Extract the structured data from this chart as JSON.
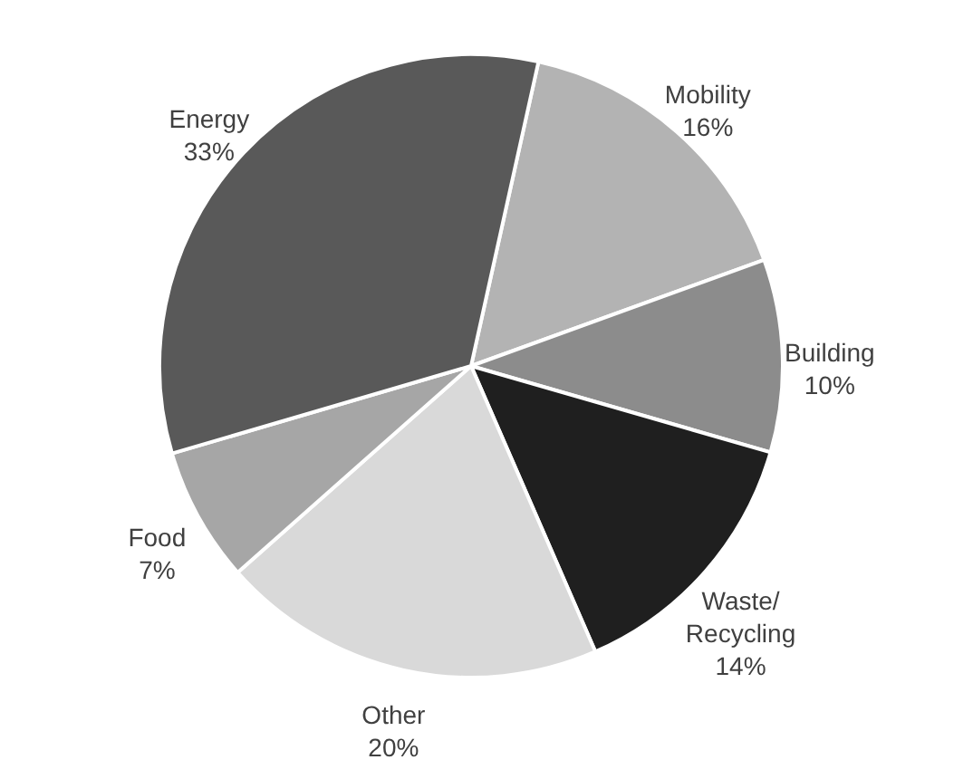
{
  "chart_data": {
    "type": "pie",
    "categories": [
      "Mobility",
      "Building",
      "Waste/Recycling",
      "Other",
      "Food",
      "Energy"
    ],
    "values": [
      16,
      10,
      14,
      20,
      7,
      33
    ],
    "colors": [
      "#b3b3b3",
      "#8c8c8c",
      "#1f1f1f",
      "#d9d9d9",
      "#a6a6a6",
      "#595959"
    ],
    "value_labels": [
      "16%",
      "10%",
      "14%",
      "20%",
      "7%",
      "33%"
    ]
  }
}
